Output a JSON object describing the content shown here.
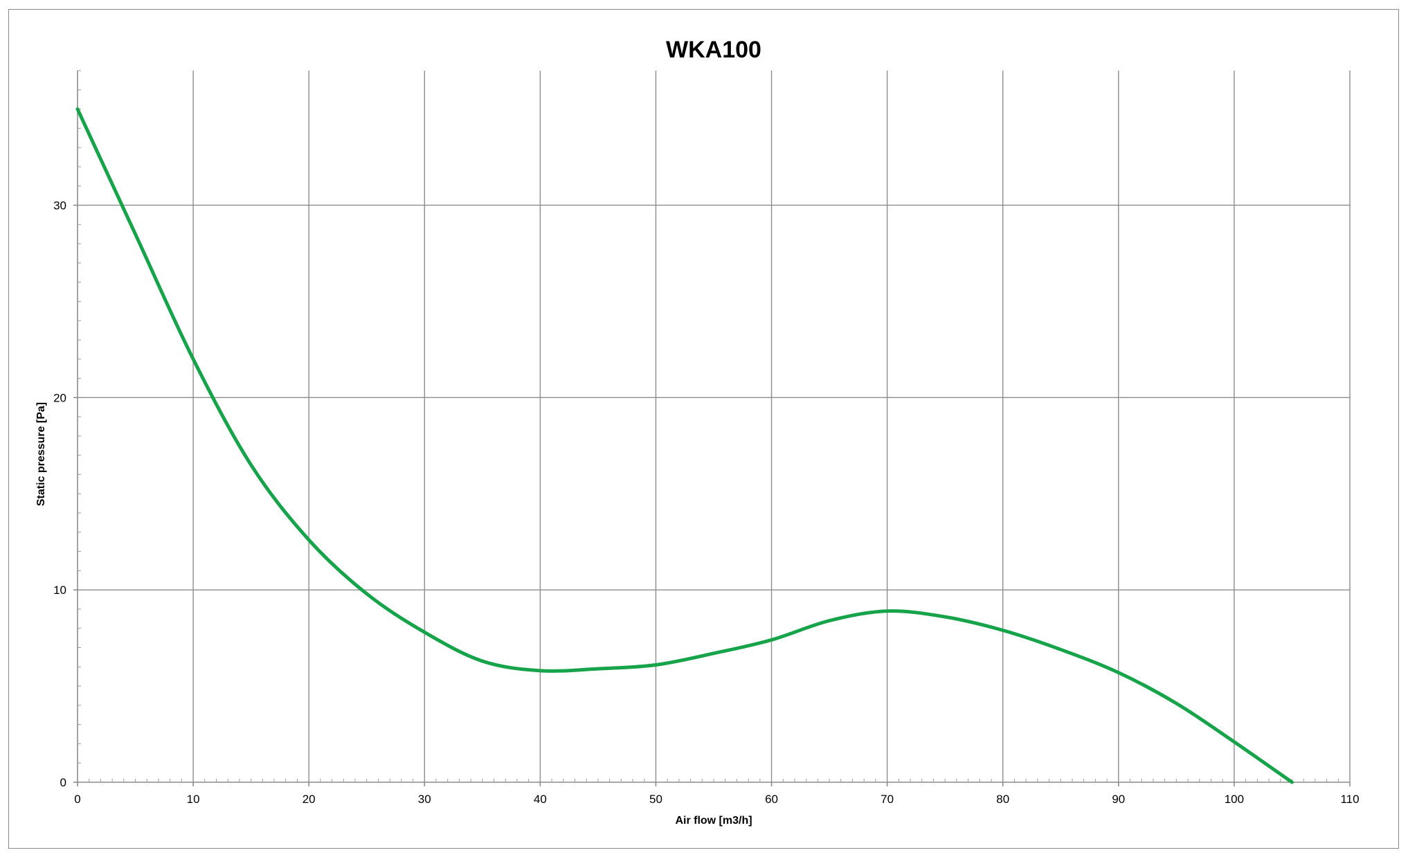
{
  "chart_data": {
    "type": "line",
    "title": "WKA100",
    "xlabel": "Air flow [m3/h]",
    "ylabel": "Static pressure [Pa]",
    "xlim": [
      0,
      110
    ],
    "ylim": [
      0,
      37
    ],
    "x_ticks": [
      0,
      10,
      20,
      30,
      40,
      50,
      60,
      70,
      80,
      90,
      100,
      110
    ],
    "y_ticks": [
      0,
      10,
      20,
      30
    ],
    "grid": true,
    "legend": "none",
    "series": [
      {
        "color": "#16a34a",
        "x": [
          0,
          5,
          10,
          15,
          20,
          25,
          30,
          35,
          40,
          45,
          50,
          55,
          60,
          65,
          70,
          75,
          80,
          85,
          90,
          95,
          100,
          105
        ],
        "y": [
          35,
          28.5,
          22,
          16.5,
          12.6,
          9.8,
          7.8,
          6.3,
          5.8,
          5.9,
          6.1,
          6.7,
          7.4,
          8.4,
          8.9,
          8.6,
          7.9,
          6.9,
          5.7,
          4.1,
          2.1,
          0
        ]
      }
    ]
  }
}
